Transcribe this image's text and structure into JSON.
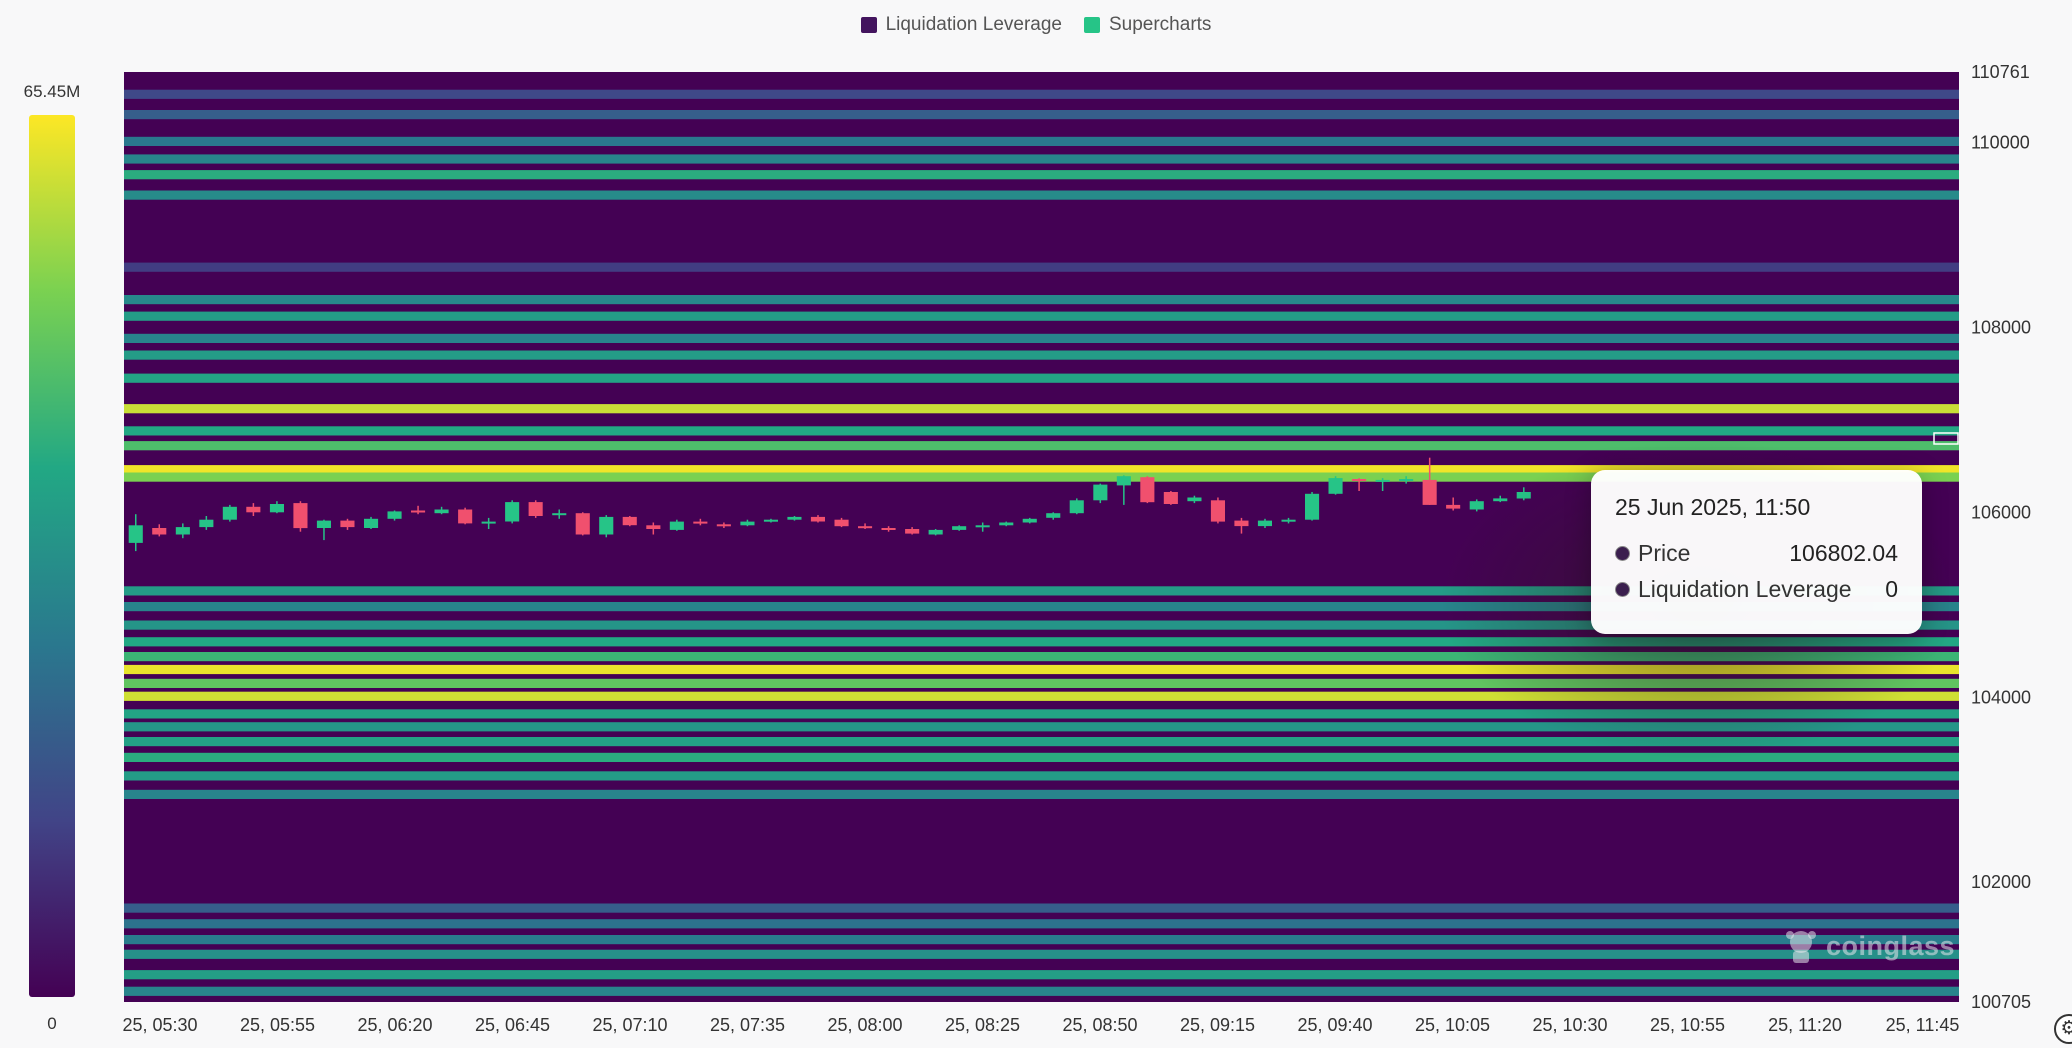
{
  "legend": {
    "items": [
      {
        "label": "Liquidation Leverage",
        "color": "#43145e"
      },
      {
        "label": "Supercharts",
        "color": "#26c487"
      }
    ]
  },
  "colorbar": {
    "max_label": "65.45M",
    "min_label": "0"
  },
  "tooltip": {
    "title": "25 Jun 2025, 11:50",
    "price_label": "Price",
    "price_value": "106802.04",
    "lev_label": "Liquidation Leverage",
    "lev_value": "0"
  },
  "watermark": "coinglass",
  "settings_icon": "gear-icon",
  "chart_data": {
    "type": "heatmap",
    "title": "",
    "xlabel": "",
    "ylabel": "",
    "x_tick_labels": [
      "25, 05:30",
      "25, 05:55",
      "25, 06:20",
      "25, 06:45",
      "25, 07:10",
      "25, 07:35",
      "25, 08:00",
      "25, 08:25",
      "25, 08:50",
      "25, 09:15",
      "25, 09:40",
      "25, 10:05",
      "25, 10:30",
      "25, 10:55",
      "25, 11:20",
      "25, 11:45"
    ],
    "y_tick_labels": [
      "110761",
      "110000",
      "108000",
      "106000",
      "104000",
      "102000",
      "100705"
    ],
    "y_ticks": [
      110761,
      110000,
      108000,
      106000,
      104000,
      102000,
      100705
    ],
    "ylim": [
      100705,
      110761
    ],
    "xlim": [
      0,
      78
    ],
    "colorscale": {
      "min": 0,
      "max": 65450000,
      "min_label": "0",
      "max_label": "65.45M",
      "colors": [
        "#440154",
        "#414487",
        "#2a788e",
        "#22a884",
        "#7ad151",
        "#fde725"
      ]
    },
    "candle_up_color": "#26c487",
    "candle_down_color": "#f0506e",
    "heat_background_color": "#440154",
    "bands": [
      {
        "price": 110520,
        "value": 0.22
      },
      {
        "price": 110300,
        "value": 0.3
      },
      {
        "price": 110010,
        "value": 0.4
      },
      {
        "price": 109820,
        "value": 0.46
      },
      {
        "price": 109650,
        "value": 0.62
      },
      {
        "price": 109430,
        "value": 0.48
      },
      {
        "price": 108650,
        "value": 0.18
      },
      {
        "price": 108300,
        "value": 0.47
      },
      {
        "price": 108120,
        "value": 0.55
      },
      {
        "price": 107880,
        "value": 0.45
      },
      {
        "price": 107700,
        "value": 0.55
      },
      {
        "price": 107450,
        "value": 0.58
      },
      {
        "price": 107120,
        "value": 0.92
      },
      {
        "price": 106880,
        "value": 0.6
      },
      {
        "price": 106720,
        "value": 0.7
      },
      {
        "price": 106460,
        "value": 0.98
      },
      {
        "price": 106380,
        "value": 0.8
      },
      {
        "price": 105150,
        "value": 0.55
      },
      {
        "price": 104980,
        "value": 0.45
      },
      {
        "price": 104780,
        "value": 0.52
      },
      {
        "price": 104600,
        "value": 0.6
      },
      {
        "price": 104440,
        "value": 0.66
      },
      {
        "price": 104300,
        "value": 0.97
      },
      {
        "price": 104150,
        "value": 0.74
      },
      {
        "price": 104010,
        "value": 0.93
      },
      {
        "price": 103820,
        "value": 0.58
      },
      {
        "price": 103680,
        "value": 0.52
      },
      {
        "price": 103520,
        "value": 0.57
      },
      {
        "price": 103350,
        "value": 0.62
      },
      {
        "price": 103150,
        "value": 0.55
      },
      {
        "price": 102950,
        "value": 0.45
      },
      {
        "price": 101720,
        "value": 0.3
      },
      {
        "price": 101550,
        "value": 0.38
      },
      {
        "price": 101380,
        "value": 0.42
      },
      {
        "price": 101220,
        "value": 0.5
      },
      {
        "price": 101000,
        "value": 0.56
      },
      {
        "price": 100820,
        "value": 0.45
      }
    ],
    "candles": [
      {
        "o": 105670,
        "h": 105980,
        "l": 105580,
        "c": 105860
      },
      {
        "o": 105830,
        "h": 105870,
        "l": 105740,
        "c": 105760
      },
      {
        "o": 105760,
        "h": 105880,
        "l": 105720,
        "c": 105840
      },
      {
        "o": 105840,
        "h": 105960,
        "l": 105810,
        "c": 105920
      },
      {
        "o": 105920,
        "h": 106080,
        "l": 105900,
        "c": 106060
      },
      {
        "o": 106060,
        "h": 106100,
        "l": 105960,
        "c": 106000
      },
      {
        "o": 106000,
        "h": 106120,
        "l": 105990,
        "c": 106090
      },
      {
        "o": 106100,
        "h": 106120,
        "l": 105790,
        "c": 105830
      },
      {
        "o": 105830,
        "h": 105920,
        "l": 105700,
        "c": 105910
      },
      {
        "o": 105910,
        "h": 105930,
        "l": 105810,
        "c": 105840
      },
      {
        "o": 105830,
        "h": 105950,
        "l": 105820,
        "c": 105930
      },
      {
        "o": 105930,
        "h": 106020,
        "l": 105910,
        "c": 106010
      },
      {
        "o": 106020,
        "h": 106070,
        "l": 105980,
        "c": 106000
      },
      {
        "o": 105990,
        "h": 106060,
        "l": 105980,
        "c": 106030
      },
      {
        "o": 106030,
        "h": 106050,
        "l": 105870,
        "c": 105880
      },
      {
        "o": 105880,
        "h": 105940,
        "l": 105820,
        "c": 105900
      },
      {
        "o": 105900,
        "h": 106130,
        "l": 105880,
        "c": 106110
      },
      {
        "o": 106110,
        "h": 106130,
        "l": 105940,
        "c": 105960
      },
      {
        "o": 105970,
        "h": 106030,
        "l": 105930,
        "c": 105990
      },
      {
        "o": 105990,
        "h": 106000,
        "l": 105750,
        "c": 105760
      },
      {
        "o": 105760,
        "h": 105970,
        "l": 105730,
        "c": 105950
      },
      {
        "o": 105950,
        "h": 105960,
        "l": 105850,
        "c": 105860
      },
      {
        "o": 105860,
        "h": 105890,
        "l": 105760,
        "c": 105820
      },
      {
        "o": 105810,
        "h": 105920,
        "l": 105800,
        "c": 105900
      },
      {
        "o": 105900,
        "h": 105930,
        "l": 105860,
        "c": 105880
      },
      {
        "o": 105870,
        "h": 105890,
        "l": 105830,
        "c": 105860
      },
      {
        "o": 105860,
        "h": 105920,
        "l": 105850,
        "c": 105900
      },
      {
        "o": 105900,
        "h": 105930,
        "l": 105890,
        "c": 105920
      },
      {
        "o": 105920,
        "h": 105960,
        "l": 105910,
        "c": 105950
      },
      {
        "o": 105950,
        "h": 105970,
        "l": 105890,
        "c": 105900
      },
      {
        "o": 105920,
        "h": 105940,
        "l": 105840,
        "c": 105850
      },
      {
        "o": 105850,
        "h": 105880,
        "l": 105820,
        "c": 105830
      },
      {
        "o": 105830,
        "h": 105850,
        "l": 105790,
        "c": 105820
      },
      {
        "o": 105820,
        "h": 105840,
        "l": 105760,
        "c": 105770
      },
      {
        "o": 105760,
        "h": 105820,
        "l": 105750,
        "c": 105810
      },
      {
        "o": 105810,
        "h": 105860,
        "l": 105800,
        "c": 105850
      },
      {
        "o": 105850,
        "h": 105890,
        "l": 105790,
        "c": 105860
      },
      {
        "o": 105860,
        "h": 105900,
        "l": 105850,
        "c": 105890
      },
      {
        "o": 105890,
        "h": 105940,
        "l": 105880,
        "c": 105930
      },
      {
        "o": 105940,
        "h": 106000,
        "l": 105920,
        "c": 105990
      },
      {
        "o": 105990,
        "h": 106150,
        "l": 105980,
        "c": 106130
      },
      {
        "o": 106130,
        "h": 106310,
        "l": 106100,
        "c": 106300
      },
      {
        "o": 106290,
        "h": 106400,
        "l": 106080,
        "c": 106390
      },
      {
        "o": 106380,
        "h": 106390,
        "l": 106100,
        "c": 106110
      },
      {
        "o": 106220,
        "h": 106230,
        "l": 106080,
        "c": 106090
      },
      {
        "o": 106120,
        "h": 106180,
        "l": 106100,
        "c": 106160
      },
      {
        "o": 106130,
        "h": 106160,
        "l": 105880,
        "c": 105900
      },
      {
        "o": 105910,
        "h": 105940,
        "l": 105770,
        "c": 105850
      },
      {
        "o": 105850,
        "h": 105930,
        "l": 105830,
        "c": 105910
      },
      {
        "o": 105900,
        "h": 105940,
        "l": 105880,
        "c": 105920
      },
      {
        "o": 105920,
        "h": 106220,
        "l": 105910,
        "c": 106200
      },
      {
        "o": 106200,
        "h": 106390,
        "l": 106190,
        "c": 106370
      },
      {
        "o": 106360,
        "h": 106370,
        "l": 106230,
        "c": 106340
      },
      {
        "o": 106340,
        "h": 106370,
        "l": 106230,
        "c": 106350
      },
      {
        "o": 106340,
        "h": 106390,
        "l": 106310,
        "c": 106360
      },
      {
        "o": 106350,
        "h": 106590,
        "l": 106080,
        "c": 106080
      },
      {
        "o": 106080,
        "h": 106160,
        "l": 106020,
        "c": 106040
      },
      {
        "o": 106030,
        "h": 106140,
        "l": 106010,
        "c": 106120
      },
      {
        "o": 106120,
        "h": 106180,
        "l": 106110,
        "c": 106150
      },
      {
        "o": 106150,
        "h": 106270,
        "l": 106130,
        "c": 106220
      }
    ],
    "tooltip_point": {
      "time": "25 Jun 2025, 11:50",
      "price": 106802.04,
      "liquidation_leverage": 0
    }
  }
}
